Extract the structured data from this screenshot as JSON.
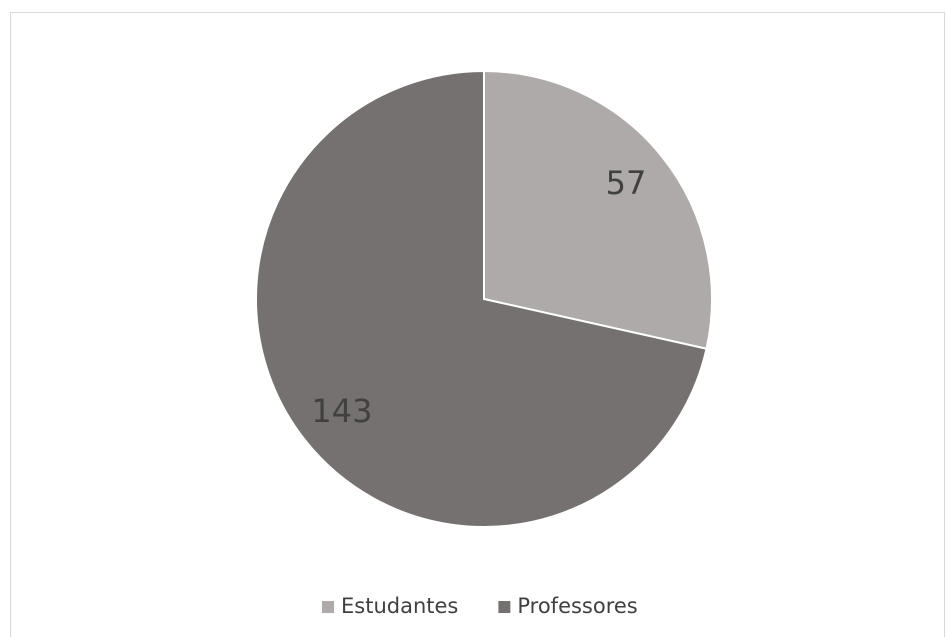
{
  "chart_data": {
    "type": "pie",
    "categories": [
      "Estudantes",
      "Professores"
    ],
    "values": [
      57,
      143
    ],
    "colors": [
      "#aeaaaa",
      "#767171"
    ],
    "legend": "bottom"
  }
}
